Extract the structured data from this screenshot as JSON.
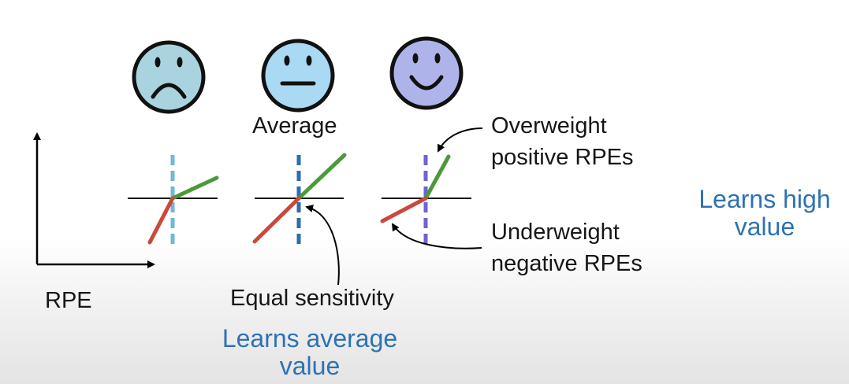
{
  "faces": [
    {
      "name": "sad",
      "fill": "#a9d3df",
      "label": ""
    },
    {
      "name": "neutral",
      "fill": "#a9d9f3",
      "label": "Average"
    },
    {
      "name": "happy",
      "fill": "#aeb4ea",
      "label": ""
    }
  ],
  "axis_label": "RPE",
  "annotations": {
    "equal_sensitivity": "Equal sensitivity",
    "overweight_line1": "Overweight",
    "overweight_line2": "positive RPEs",
    "underweight_line1": "Underweight",
    "underweight_line2": "negative RPEs"
  },
  "outcomes": {
    "average_line1": "Learns average",
    "average_line2": "value",
    "high_line1": "Learns high",
    "high_line2": "value"
  },
  "colors": {
    "positive_line": "#4a9a3a",
    "negative_line": "#c9493a",
    "dashed_line_1": "#6fb8d6",
    "dashed_line_2": "#2b6db3",
    "dashed_line_3": "#6e63cf",
    "outcome_text": "#2f71b3"
  }
}
